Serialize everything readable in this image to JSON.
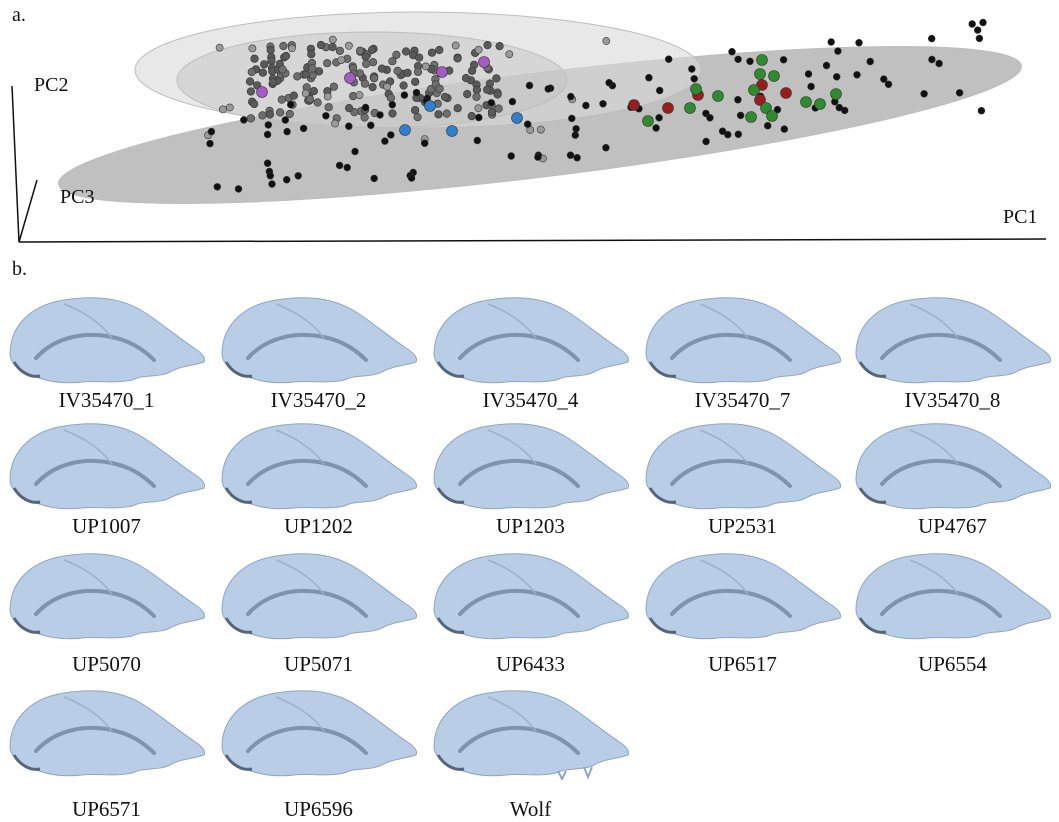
{
  "panel_a_label": "a.",
  "panel_b_label": "b.",
  "axes": {
    "pc1": "PC1",
    "pc2": "PC2",
    "pc3": "PC3"
  },
  "colors": {
    "black_points": "#111111",
    "grey_points": "#5a5a5a",
    "light_grey_points": "#9a9a9a",
    "purple_points": "#a45bc4",
    "blue_points": "#2f7fcf",
    "red_points": "#9a1d1d",
    "green_points": "#2e8b2e",
    "large_ellipse": "#8c8c8c",
    "small_ellipse": "#d9d9d9",
    "skull": "#b9cde6"
  },
  "specimens": [
    {
      "id": "IV35470_1"
    },
    {
      "id": "IV35470_2"
    },
    {
      "id": "IV35470_4"
    },
    {
      "id": "IV35470_7"
    },
    {
      "id": "IV35470_8"
    },
    {
      "id": "UP1007"
    },
    {
      "id": "UP1202"
    },
    {
      "id": "UP1203"
    },
    {
      "id": "UP2531"
    },
    {
      "id": "UP4767"
    },
    {
      "id": "UP5070"
    },
    {
      "id": "UP5071"
    },
    {
      "id": "UP6433"
    },
    {
      "id": "UP6517"
    },
    {
      "id": "UP6554"
    },
    {
      "id": "UP6571"
    },
    {
      "id": "UP6596"
    },
    {
      "id": "Wolf"
    }
  ]
}
